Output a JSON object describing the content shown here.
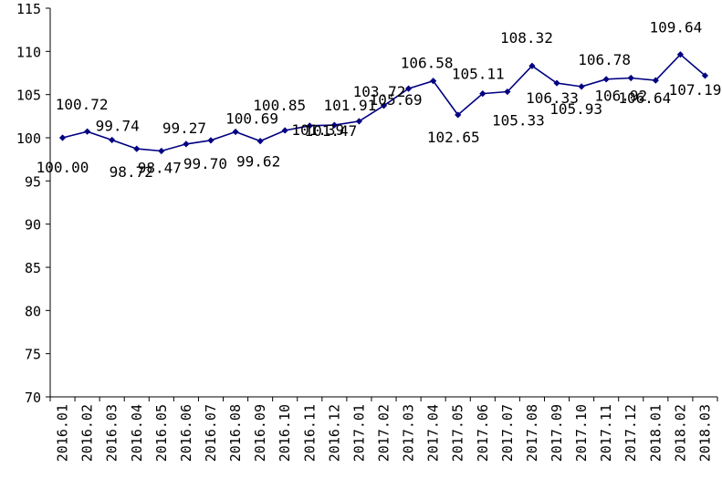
{
  "chart_data": {
    "type": "line",
    "title": "",
    "xlabel": "",
    "ylabel": "",
    "ylim": [
      70,
      115
    ],
    "y_ticks": [
      "70",
      "75",
      "80",
      "85",
      "90",
      "95",
      "100",
      "105",
      "110",
      "115"
    ],
    "categories": [
      "2016.01",
      "2016.02",
      "2016.03",
      "2016.04",
      "2016.05",
      "2016.06",
      "2016.07",
      "2016.08",
      "2016.09",
      "2016.10",
      "2016.11",
      "2016.12",
      "2017.01",
      "2017.02",
      "2017.03",
      "2017.04",
      "2017.05",
      "2017.06",
      "2017.07",
      "2017.08",
      "2017.09",
      "2017.10",
      "2017.11",
      "2017.12",
      "2018.01",
      "2018.02",
      "2018.03"
    ],
    "values": [
      100.0,
      100.72,
      99.74,
      98.72,
      98.47,
      99.27,
      99.7,
      100.69,
      99.62,
      100.85,
      101.39,
      101.47,
      101.91,
      103.72,
      105.69,
      106.58,
      102.65,
      105.11,
      105.33,
      108.32,
      106.33,
      105.93,
      106.78,
      106.92,
      106.64,
      109.64,
      107.19
    ],
    "data_labels": [
      "100.00",
      "100.72",
      "99.74",
      "98.72",
      "98.47",
      "99.27",
      "99.70",
      "100.69",
      "99.62",
      "100.85",
      "101.39",
      "101.47",
      "101.91",
      "103.72",
      "105.69",
      "106.58",
      "102.65",
      "105.11",
      "105.33",
      "108.32",
      "106.33",
      "105.93",
      "106.78",
      "106.92",
      "106.64",
      "109.64",
      "107.19"
    ],
    "series_color": "#000080",
    "grid": false,
    "legend": "none"
  }
}
